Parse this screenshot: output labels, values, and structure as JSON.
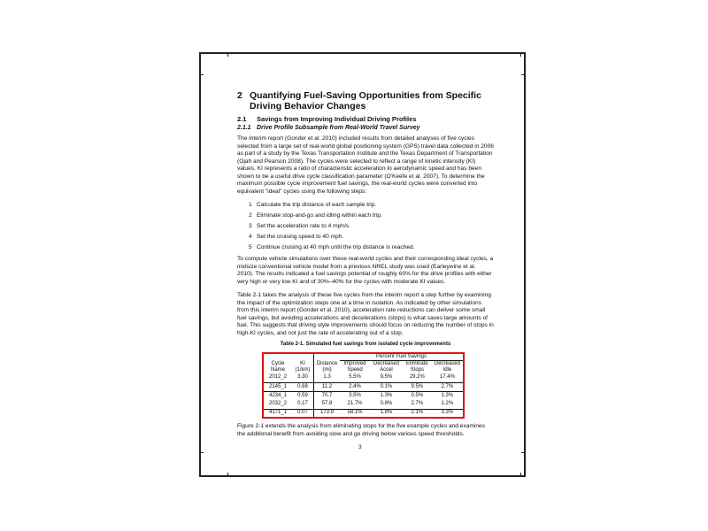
{
  "heading": {
    "number": "2",
    "title": "Quantifying Fuel-Saving Opportunities from Specific Driving Behavior Changes"
  },
  "section": {
    "number": "2.1",
    "title": "Savings from Improving Individual Driving Profiles"
  },
  "subsection": {
    "number": "2.1.1",
    "title": "Drive Profile Subsample from Real-World Travel Survey"
  },
  "paragraphs": [
    "The interim report (Gonder et al. 2010) included results from detailed analyses of five cycles selected from a large set of real-world global positioning system (GPS) travel data collected in 2006 as part of a study by the Texas Transportation Institute and the Texas Department of Transportation (Ojah and Pearson 2008). The cycles were selected to reflect a range of kinetic intensity (KI) values. KI represents a ratio of characteristic acceleration to aerodynamic speed and has been shown to be a useful drive cycle classification parameter (O'Keefe et al. 2007). To determine the maximum possible cycle improvement fuel savings, the real-world cycles were converted into equivalent \"ideal\" cycles using the following steps:",
    "To compute vehicle simulations over these real-world cycles and their corresponding ideal cycles, a midsize conventional vehicle model from a previous NREL study was used (Earleywine et al. 2010). The results indicated a fuel savings potential of roughly 60% for the drive profiles with either very high or very low KI and of 30%–40% for the cycles with moderate KI values.",
    "Table 2-1 takes the analysis of these five cycles from the interim report a step further by examining the impact of the optimization steps one at a time in isolation. As indicated by other simulations from this interim report (Gonder et al. 2010), acceleration rate reductions can deliver some small fuel savings, but avoiding accelerations and decelerations (stops) is what saves large amounts of fuel. This suggests that driving style improvements should focus on reducing the number of stops in high-KI cycles, and not just the rate of accelerating out of a stop.",
    "Figure 2-1 extends the analysis from eliminating stops for the five example cycles and examines the additional benefit from avoiding slow and go driving below various speed thresholds."
  ],
  "steps": [
    {
      "n": "1",
      "text": "Calculate the trip distance of each sample trip."
    },
    {
      "n": "2",
      "text": "Eliminate stop-and-go and idling within each trip."
    },
    {
      "n": "3",
      "text": "Set the acceleration rate to 4 mph/s."
    },
    {
      "n": "4",
      "text": "Set the cruising speed to 40 mph."
    },
    {
      "n": "5",
      "text": "Continue cruising at 40 mph until the trip distance is reached."
    }
  ],
  "table": {
    "caption": "Table 2-1. Simulated fuel savings from isolated cycle improvements",
    "headers": {
      "cycle": "Cycle Name",
      "ki": "KI (1/km)",
      "distance": "Distance (mi)",
      "group": "Percent Fuel Savings",
      "improved_speed": "Improved Speed",
      "decreased_accel": "Decreased Accel",
      "eliminate_stops": "Eliminate Stops",
      "decreased_idle": "Decreased Idle"
    },
    "rows": [
      [
        "2012_2",
        "3.30",
        "1.3",
        "5.5%",
        "9.5%",
        "29.2%",
        "17.4%"
      ],
      [
        "2145_1",
        "0.68",
        "11.2",
        "2.4%",
        "0.1%",
        "9.5%",
        "2.7%"
      ],
      [
        "4234_1",
        "0.59",
        "70.7",
        "3.5%",
        "1.3%",
        "0.5%",
        "1.3%"
      ],
      [
        "2032_2",
        "0.17",
        "57.8",
        "21.7%",
        "0.8%",
        "2.7%",
        "1.2%"
      ],
      [
        "4171_1",
        "0.07",
        "173.9",
        "58.1%",
        "1.8%",
        "2.1%",
        "3.3%"
      ]
    ],
    "highlight_color": "#e01010"
  },
  "page_number": "3"
}
